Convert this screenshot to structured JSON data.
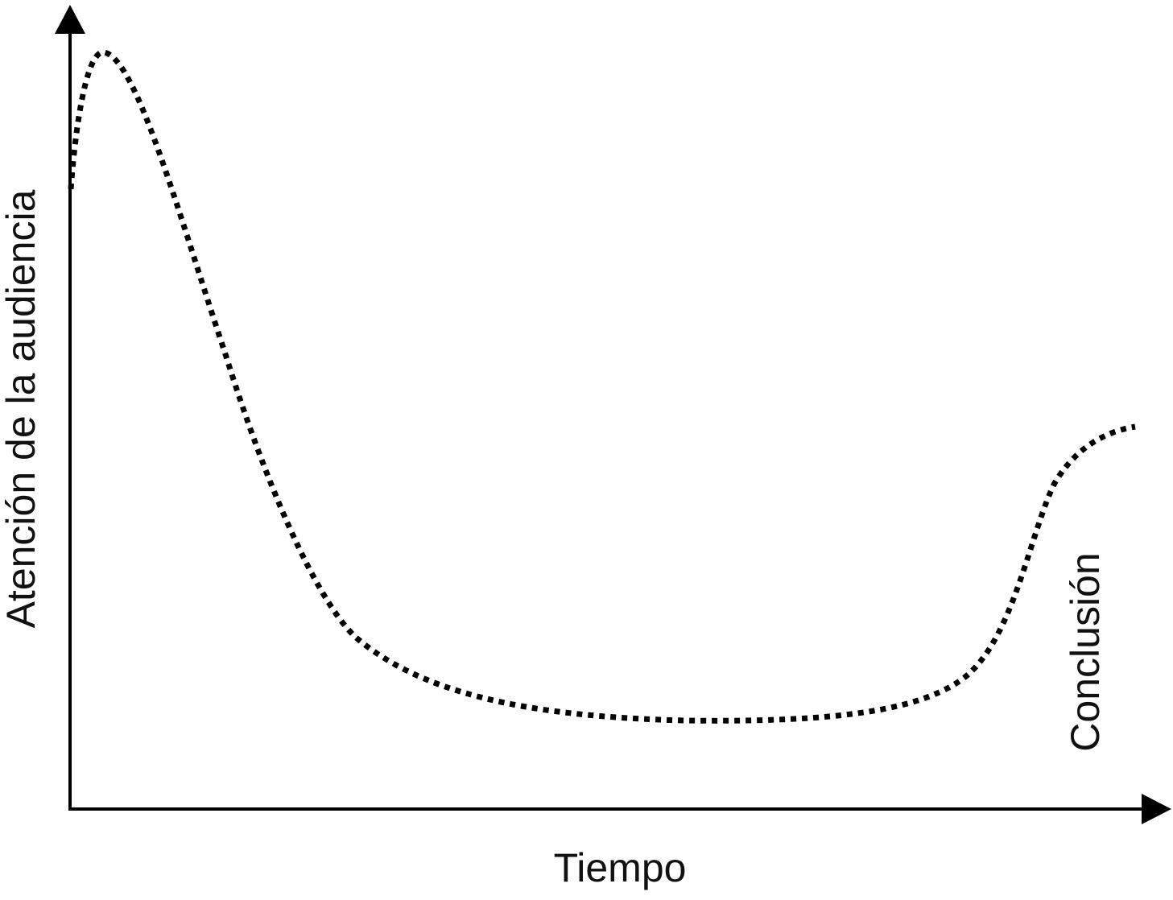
{
  "axes": {
    "y_label": "Atención de la audiencia",
    "x_label": "Tiempo"
  },
  "annotation": "Conclusión"
}
